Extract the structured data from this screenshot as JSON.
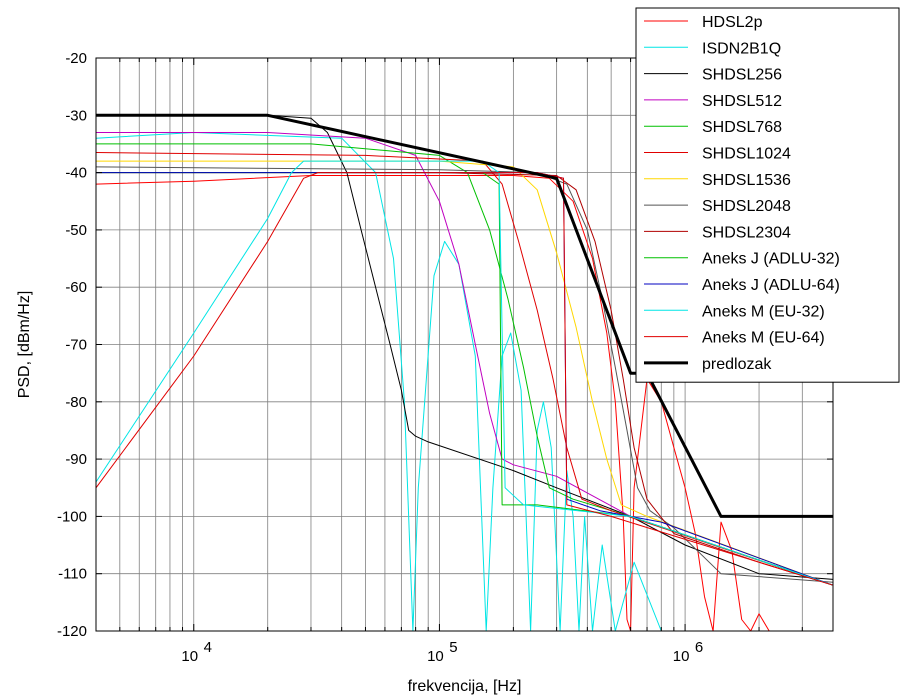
{
  "chart_data": {
    "type": "line",
    "xlabel": "frekvencija, [Hz]",
    "ylabel": "PSD, [dBm/Hz]",
    "x_scale": "log",
    "xlim": [
      4000,
      4000000
    ],
    "ylim": [
      -120,
      -20
    ],
    "grid": true,
    "legend_position": "top-right",
    "x_ticks": [
      {
        "value": 10000,
        "base": "10",
        "exp": "4"
      },
      {
        "value": 100000,
        "base": "10",
        "exp": "5"
      },
      {
        "value": 1000000,
        "base": "10",
        "exp": "6"
      }
    ],
    "y_ticks": [
      {
        "value": -20,
        "label": "-20"
      },
      {
        "value": -30,
        "label": "-30"
      },
      {
        "value": -40,
        "label": "-40"
      },
      {
        "value": -50,
        "label": "-50"
      },
      {
        "value": -60,
        "label": "-60"
      },
      {
        "value": -70,
        "label": "-70"
      },
      {
        "value": -80,
        "label": "-80"
      },
      {
        "value": -90,
        "label": "-90"
      },
      {
        "value": -100,
        "label": "-100"
      },
      {
        "value": -110,
        "label": "-110"
      },
      {
        "value": -120,
        "label": "-120"
      }
    ],
    "series": [
      {
        "name": "HDSL2p",
        "color": "#ff0000",
        "width": 1,
        "points": [
          [
            4000,
            -42
          ],
          [
            10000,
            -41.5
          ],
          [
            30000,
            -40.5
          ],
          [
            100000,
            -40.5
          ],
          [
            200000,
            -40.5
          ],
          [
            280000,
            -41
          ],
          [
            350000,
            -45
          ],
          [
            420000,
            -55
          ],
          [
            480000,
            -68
          ],
          [
            520000,
            -80
          ],
          [
            560000,
            -100
          ],
          [
            580000,
            -118
          ],
          [
            600000,
            -120
          ],
          [
            620000,
            -95
          ],
          [
            700000,
            -76
          ],
          [
            800000,
            -80
          ],
          [
            900000,
            -88
          ],
          [
            1000000,
            -95
          ],
          [
            1100000,
            -103
          ],
          [
            1200000,
            -114
          ],
          [
            1300000,
            -120
          ],
          [
            1400000,
            -101
          ],
          [
            1550000,
            -106
          ],
          [
            1700000,
            -118
          ],
          [
            1850000,
            -120
          ],
          [
            2000000,
            -117
          ],
          [
            2200000,
            -120
          ],
          [
            4000000,
            -120
          ]
        ]
      },
      {
        "name": "ISDN2B1Q",
        "color": "#00e5e5",
        "width": 1,
        "points": [
          [
            4000,
            -34
          ],
          [
            10000,
            -33
          ],
          [
            40000,
            -34
          ],
          [
            55000,
            -40
          ],
          [
            65000,
            -55
          ],
          [
            72000,
            -80
          ],
          [
            78000,
            -120
          ],
          [
            82000,
            -95
          ],
          [
            95000,
            -58
          ],
          [
            105000,
            -52
          ],
          [
            120000,
            -56
          ],
          [
            140000,
            -72
          ],
          [
            155000,
            -120
          ],
          [
            165000,
            -95
          ],
          [
            180000,
            -72
          ],
          [
            195000,
            -68
          ],
          [
            215000,
            -78
          ],
          [
            235000,
            -120
          ],
          [
            250000,
            -85
          ],
          [
            265000,
            -80
          ],
          [
            285000,
            -88
          ],
          [
            310000,
            -120
          ],
          [
            330000,
            -92
          ],
          [
            350000,
            -100
          ],
          [
            370000,
            -120
          ],
          [
            390000,
            -100
          ],
          [
            420000,
            -120
          ],
          [
            460000,
            -105
          ],
          [
            520000,
            -120
          ],
          [
            620000,
            -108
          ],
          [
            800000,
            -120
          ],
          [
            4000000,
            -120
          ]
        ]
      },
      {
        "name": "SHDSL256",
        "color": "#000000",
        "width": 1,
        "points": [
          [
            4000,
            -30
          ],
          [
            20000,
            -30
          ],
          [
            30000,
            -30.5
          ],
          [
            35000,
            -33
          ],
          [
            42000,
            -40
          ],
          [
            48000,
            -50
          ],
          [
            55000,
            -60
          ],
          [
            63000,
            -70
          ],
          [
            70000,
            -78
          ],
          [
            75000,
            -85
          ],
          [
            80000,
            -86
          ],
          [
            90000,
            -87
          ],
          [
            200000,
            -92
          ],
          [
            300000,
            -95
          ],
          [
            600000,
            -100
          ],
          [
            1000000,
            -105
          ],
          [
            2000000,
            -110
          ],
          [
            4000000,
            -111
          ]
        ]
      },
      {
        "name": "SHDSL512",
        "color": "#c000c0",
        "width": 1,
        "points": [
          [
            4000,
            -33
          ],
          [
            20000,
            -33
          ],
          [
            50000,
            -34
          ],
          [
            80000,
            -37
          ],
          [
            100000,
            -45
          ],
          [
            120000,
            -56
          ],
          [
            140000,
            -70
          ],
          [
            160000,
            -82
          ],
          [
            180000,
            -90
          ],
          [
            200000,
            -91
          ],
          [
            300000,
            -93
          ],
          [
            600000,
            -100
          ],
          [
            4000000,
            -112
          ]
        ]
      },
      {
        "name": "SHDSL768",
        "color": "#00c000",
        "width": 1,
        "points": [
          [
            4000,
            -35
          ],
          [
            30000,
            -35
          ],
          [
            100000,
            -37
          ],
          [
            130000,
            -40
          ],
          [
            160000,
            -50
          ],
          [
            190000,
            -62
          ],
          [
            220000,
            -74
          ],
          [
            250000,
            -86
          ],
          [
            280000,
            -95
          ],
          [
            350000,
            -97
          ],
          [
            600000,
            -100
          ],
          [
            4000000,
            -112
          ]
        ]
      },
      {
        "name": "SHDSL1024",
        "color": "#e00000",
        "width": 1,
        "points": [
          [
            4000,
            -36.5
          ],
          [
            50000,
            -37
          ],
          [
            150000,
            -38
          ],
          [
            180000,
            -42
          ],
          [
            210000,
            -52
          ],
          [
            250000,
            -64
          ],
          [
            290000,
            -76
          ],
          [
            330000,
            -88
          ],
          [
            380000,
            -97
          ],
          [
            500000,
            -99
          ],
          [
            4000000,
            -112
          ]
        ]
      },
      {
        "name": "SHDSL1536",
        "color": "#ffd700",
        "width": 1,
        "points": [
          [
            4000,
            -38
          ],
          [
            100000,
            -38
          ],
          [
            200000,
            -39
          ],
          [
            250000,
            -43
          ],
          [
            300000,
            -54
          ],
          [
            360000,
            -67
          ],
          [
            420000,
            -80
          ],
          [
            480000,
            -90
          ],
          [
            550000,
            -98
          ],
          [
            700000,
            -100
          ],
          [
            4000000,
            -112
          ]
        ]
      },
      {
        "name": "SHDSL2048",
        "color": "#555555",
        "width": 1,
        "points": [
          [
            4000,
            -39
          ],
          [
            100000,
            -39.5
          ],
          [
            250000,
            -40
          ],
          [
            330000,
            -42
          ],
          [
            400000,
            -50
          ],
          [
            460000,
            -62
          ],
          [
            520000,
            -74
          ],
          [
            580000,
            -85
          ],
          [
            640000,
            -95
          ],
          [
            720000,
            -99
          ],
          [
            900000,
            -102
          ],
          [
            1400000,
            -110
          ],
          [
            4000000,
            -111.5
          ]
        ]
      },
      {
        "name": "SHDSL2304",
        "color": "#b00000",
        "width": 1,
        "points": [
          [
            4000,
            -40
          ],
          [
            100000,
            -40
          ],
          [
            300000,
            -40.5
          ],
          [
            360000,
            -43
          ],
          [
            430000,
            -52
          ],
          [
            500000,
            -64
          ],
          [
            560000,
            -76
          ],
          [
            620000,
            -88
          ],
          [
            700000,
            -97
          ],
          [
            900000,
            -103
          ],
          [
            2000000,
            -108
          ],
          [
            4000000,
            -112
          ]
        ]
      },
      {
        "name": "Aneks J (ADLU-32)",
        "color": "#00c000",
        "width": 1,
        "points": [
          [
            4000,
            -40
          ],
          [
            150000,
            -40
          ],
          [
            175000,
            -42
          ],
          [
            180000,
            -98
          ],
          [
            250000,
            -98
          ],
          [
            600000,
            -100
          ],
          [
            4000000,
            -112
          ]
        ]
      },
      {
        "name": "Aneks J (ADLU-64)",
        "color": "#0000c0",
        "width": 1,
        "points": [
          [
            4000,
            -40
          ],
          [
            250000,
            -40
          ],
          [
            320000,
            -41
          ],
          [
            330000,
            -97
          ],
          [
            450000,
            -99
          ],
          [
            800000,
            -101
          ],
          [
            4000000,
            -112
          ]
        ]
      },
      {
        "name": "Aneks M (EU-32)",
        "color": "#00e5e5",
        "width": 1,
        "points": [
          [
            4000,
            -94
          ],
          [
            10000,
            -68
          ],
          [
            20000,
            -48
          ],
          [
            25000,
            -40
          ],
          [
            28000,
            -38
          ],
          [
            150000,
            -38
          ],
          [
            175000,
            -40
          ],
          [
            185000,
            -95
          ],
          [
            220000,
            -98
          ],
          [
            600000,
            -100
          ],
          [
            4000000,
            -112
          ]
        ]
      },
      {
        "name": "Aneks M (EU-64)",
        "color": "#e00000",
        "width": 1,
        "points": [
          [
            4000,
            -95
          ],
          [
            10000,
            -72
          ],
          [
            20000,
            -52
          ],
          [
            28000,
            -41
          ],
          [
            32000,
            -40
          ],
          [
            250000,
            -40
          ],
          [
            320000,
            -41
          ],
          [
            330000,
            -98
          ],
          [
            500000,
            -100
          ],
          [
            4000000,
            -112
          ]
        ]
      },
      {
        "name": "predlozak",
        "color": "#000000",
        "width": 3,
        "points": [
          [
            4000,
            -30
          ],
          [
            20000,
            -30
          ],
          [
            300000,
            -41
          ],
          [
            600000,
            -75
          ],
          [
            700000,
            -75
          ],
          [
            1400000,
            -100
          ],
          [
            4000000,
            -100
          ]
        ]
      }
    ]
  }
}
